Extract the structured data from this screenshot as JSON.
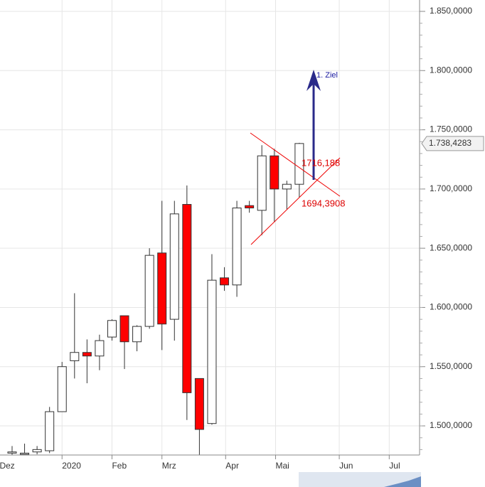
{
  "chart_data": {
    "type": "candlestick",
    "categories": [
      null,
      null,
      null,
      null,
      null,
      null,
      null,
      null,
      null,
      null,
      null,
      null,
      null,
      null,
      null,
      null,
      null,
      null,
      null,
      null,
      null,
      null,
      null,
      null
    ],
    "open": [
      1477,
      1476,
      1478,
      1479,
      1512,
      1555,
      1562,
      1559,
      1575,
      1593,
      1571,
      1584,
      1646,
      1590,
      1687,
      1540,
      1502,
      1625,
      1619,
      1686,
      1682,
      1728,
      1700,
      1704
    ],
    "high": [
      1483,
      1485,
      1483,
      1516,
      1554,
      1612,
      1573,
      1577,
      1590,
      1593,
      1585,
      1650,
      1690,
      1690,
      1703,
      1540,
      1645,
      1634,
      1690,
      1690,
      1737,
      1734,
      1707,
      1739
    ],
    "low": [
      1474,
      1474,
      1476,
      1477,
      1512,
      1540,
      1536,
      1547,
      1572,
      1548,
      1563,
      1582,
      1564,
      1572,
      1505,
      1475,
      1501,
      1614,
      1609,
      1680,
      1661,
      1672,
      1683,
      1693
    ],
    "close": [
      1478,
      1477,
      1480,
      1512,
      1550,
      1562,
      1559,
      1572,
      1589,
      1571,
      1584,
      1644,
      1586,
      1679,
      1528,
      1497,
      1623,
      1619,
      1684,
      1684,
      1728,
      1700,
      1704,
      1738.4283
    ],
    "up_color": "#ffffff",
    "down_color": "#ff0000",
    "wick_color": "#333333",
    "xticklabels": [
      "Dez",
      "2020",
      "Feb",
      "Mrz",
      "Apr",
      "Mai",
      "Jun",
      "Jul"
    ],
    "ylim": [
      1475.4,
      1859.6
    ],
    "yticks": [
      {
        "value": 1500,
        "label": "1.500,0000"
      },
      {
        "value": 1550,
        "label": "1.550,0000"
      },
      {
        "value": 1600,
        "label": "1.600,0000"
      },
      {
        "value": 1650,
        "label": "1.650,0000"
      },
      {
        "value": 1700,
        "label": "1.700,0000"
      },
      {
        "value": 1750,
        "label": "1.750,0000"
      },
      {
        "value": 1800,
        "label": "1.800,0000"
      },
      {
        "value": 1850,
        "label": "1.850,0000"
      }
    ],
    "last_price": {
      "value": 1738.4283,
      "label": "1.738,4283"
    },
    "annotations": [
      {
        "text": "1716,188",
        "color": "#dd0000"
      },
      {
        "text": "1694,3908",
        "color": "#dd0000"
      },
      {
        "text": "1. Ziel",
        "color": "#1a1aa0"
      }
    ],
    "grid": true
  }
}
